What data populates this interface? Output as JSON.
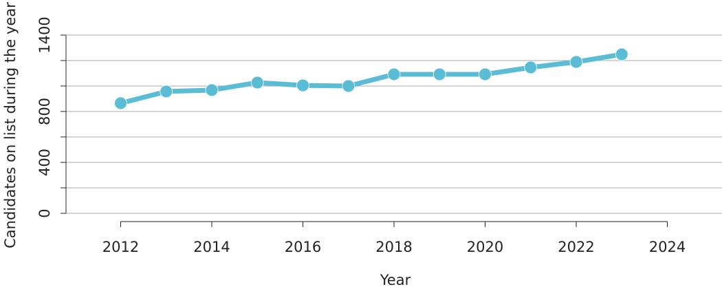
{
  "chart_data": {
    "type": "line",
    "x_label": "Year",
    "y_label": "Candidates on list during the year",
    "x": [
      2012,
      2013,
      2014,
      2015,
      2016,
      2017,
      2018,
      2019,
      2020,
      2021,
      2022,
      2023
    ],
    "values": [
      865,
      957,
      968,
      1027,
      1005,
      1000,
      1092,
      1092,
      1092,
      1146,
      1189,
      1249
    ],
    "color": "#5bbcd6",
    "xlim": [
      2010.8,
      2025.2
    ],
    "xticks": [
      2012,
      2014,
      2016,
      2018,
      2020,
      2022,
      2024
    ],
    "ylim": [
      0,
      1400
    ],
    "yticks": [
      0,
      400,
      800,
      1400
    ],
    "ygrid": [
      0,
      200,
      400,
      600,
      800,
      1000,
      1200,
      1400
    ]
  }
}
